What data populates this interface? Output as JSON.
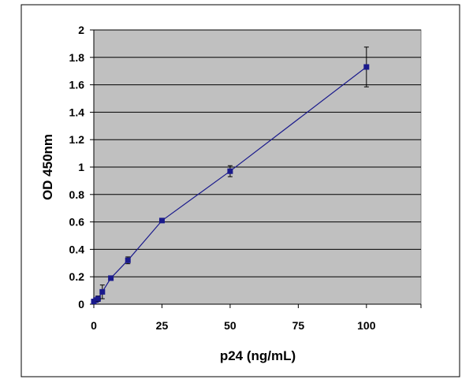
{
  "chart_data": {
    "type": "line",
    "xlabel": "p24 (ng/mL)",
    "ylabel": "OD 450nm",
    "xlim": [
      0,
      120
    ],
    "ylim": [
      0,
      2
    ],
    "x_ticks": [
      "0",
      "25",
      "50",
      "75",
      "100"
    ],
    "y_ticks": [
      "0",
      "0.2",
      "0.4",
      "0.6",
      "0.8",
      "1",
      "1.2",
      "1.4",
      "1.6",
      "1.8",
      "2"
    ],
    "grid": "horizontal",
    "legend": "none",
    "series": [
      {
        "x": [
          0,
          0.78,
          1.56,
          3.125,
          6.25,
          12.5,
          25,
          50,
          100
        ],
        "y": [
          0.02,
          0.03,
          0.04,
          0.09,
          0.19,
          0.32,
          0.61,
          0.97,
          1.73
        ],
        "y_error": [
          0.005,
          0.005,
          0.02,
          0.05,
          0.01,
          0.025,
          0.01,
          0.04,
          0.145
        ],
        "color": "#1a1a8c",
        "marker": "square"
      }
    ],
    "colors": {
      "plot_background": "#c0c0c0",
      "gridline": "#000000",
      "series": "#1a1a8c"
    }
  }
}
